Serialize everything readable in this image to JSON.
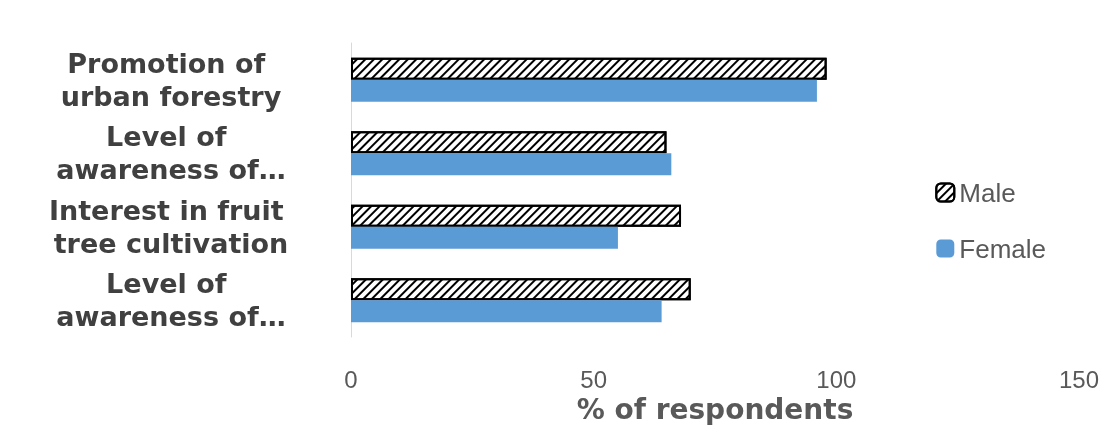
{
  "chart_data": {
    "type": "bar",
    "orientation": "horizontal",
    "xlabel": "% of respondents",
    "categories": [
      "Promotion of urban forestry",
      "Level of awareness of…",
      "Interest in fruit tree cultivation",
      "Level of awareness of…"
    ],
    "series": [
      {
        "name": "Male",
        "color": "#000000",
        "values": [
          98,
          65,
          68,
          70
        ]
      },
      {
        "name": "Female",
        "color": "#5b9bd5",
        "values": [
          96,
          66,
          55,
          64
        ]
      }
    ],
    "xlim": [
      0,
      150
    ],
    "xticks": [
      0,
      50,
      100,
      150
    ],
    "grid": false,
    "legend": "right"
  }
}
